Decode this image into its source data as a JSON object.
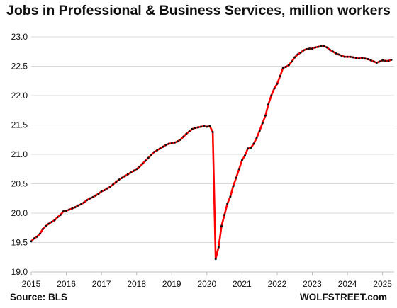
{
  "title": "Jobs in Professional & Business Services, million workers",
  "source": "Source: BLS",
  "credit": "WOLFSTREET.com",
  "colors": {
    "line": "#ff0000",
    "marker": "#111111",
    "grid": "#d9d9d9",
    "axis": "#bfbfbf"
  },
  "chart_data": {
    "type": "line",
    "title": "Jobs in Professional & Business Services, million workers",
    "xlabel": "",
    "ylabel": "",
    "grid": true,
    "legend": "none",
    "xlim": [
      2015.0,
      2025.33
    ],
    "ylim": [
      19.0,
      23.0
    ],
    "x_ticks": [
      "2015",
      "2016",
      "2017",
      "2018",
      "2019",
      "2020",
      "2021",
      "2022",
      "2023",
      "2024",
      "2025"
    ],
    "y_ticks": [
      "19.0",
      "19.5",
      "20.0",
      "20.5",
      "21.0",
      "21.5",
      "22.0",
      "22.5",
      "23.0"
    ],
    "series": [
      {
        "x": [
          2015.0,
          2015.083,
          2015.167,
          2015.25,
          2015.333,
          2015.417,
          2015.5,
          2015.583,
          2015.667,
          2015.75,
          2015.833,
          2015.917,
          2016.0,
          2016.083,
          2016.167,
          2016.25,
          2016.333,
          2016.417,
          2016.5,
          2016.583,
          2016.667,
          2016.75,
          2016.833,
          2016.917,
          2017.0,
          2017.083,
          2017.167,
          2017.25,
          2017.333,
          2017.417,
          2017.5,
          2017.583,
          2017.667,
          2017.75,
          2017.833,
          2017.917,
          2018.0,
          2018.083,
          2018.167,
          2018.25,
          2018.333,
          2018.417,
          2018.5,
          2018.583,
          2018.667,
          2018.75,
          2018.833,
          2018.917,
          2019.0,
          2019.083,
          2019.167,
          2019.25,
          2019.333,
          2019.417,
          2019.5,
          2019.583,
          2019.667,
          2019.75,
          2019.833,
          2019.917,
          2020.0,
          2020.083,
          2020.167,
          2020.25,
          2020.333,
          2020.417,
          2020.5,
          2020.583,
          2020.667,
          2020.75,
          2020.833,
          2020.917,
          2021.0,
          2021.083,
          2021.167,
          2021.25,
          2021.333,
          2021.417,
          2021.5,
          2021.583,
          2021.667,
          2021.75,
          2021.833,
          2021.917,
          2022.0,
          2022.083,
          2022.167,
          2022.25,
          2022.333,
          2022.417,
          2022.5,
          2022.583,
          2022.667,
          2022.75,
          2022.833,
          2022.917,
          2023.0,
          2023.083,
          2023.167,
          2023.25,
          2023.333,
          2023.417,
          2023.5,
          2023.583,
          2023.667,
          2023.75,
          2023.833,
          2023.917,
          2024.0,
          2024.083,
          2024.167,
          2024.25,
          2024.333,
          2024.417,
          2024.5,
          2024.583,
          2024.667,
          2024.75,
          2024.833,
          2024.917,
          2025.0,
          2025.083,
          2025.167,
          2025.25
        ],
        "y": [
          19.52,
          19.57,
          19.6,
          19.65,
          19.73,
          19.78,
          19.82,
          19.85,
          19.88,
          19.93,
          19.97,
          20.03,
          20.04,
          20.06,
          20.08,
          20.1,
          20.13,
          20.15,
          20.18,
          20.22,
          20.25,
          20.27,
          20.3,
          20.33,
          20.37,
          20.39,
          20.42,
          20.45,
          20.49,
          20.53,
          20.57,
          20.6,
          20.63,
          20.66,
          20.69,
          20.72,
          20.75,
          20.79,
          20.84,
          20.89,
          20.94,
          20.99,
          21.04,
          21.07,
          21.1,
          21.13,
          21.16,
          21.18,
          21.19,
          21.2,
          21.22,
          21.25,
          21.3,
          21.35,
          21.39,
          21.43,
          21.45,
          21.46,
          21.47,
          21.48,
          21.47,
          21.48,
          21.38,
          19.22,
          19.42,
          19.78,
          19.97,
          20.16,
          20.28,
          20.46,
          20.6,
          20.75,
          20.9,
          20.98,
          21.1,
          21.11,
          21.18,
          21.28,
          21.4,
          21.53,
          21.66,
          21.85,
          22.0,
          22.12,
          22.2,
          22.33,
          22.47,
          22.49,
          22.52,
          22.58,
          22.65,
          22.7,
          22.73,
          22.77,
          22.79,
          22.8,
          22.8,
          22.82,
          22.83,
          22.84,
          22.84,
          22.82,
          22.78,
          22.75,
          22.72,
          22.7,
          22.68,
          22.66,
          22.66,
          22.66,
          22.65,
          22.64,
          22.63,
          22.64,
          22.63,
          22.62,
          22.6,
          22.58,
          22.56,
          22.58,
          22.6,
          22.59,
          22.59,
          22.61
        ]
      }
    ]
  }
}
